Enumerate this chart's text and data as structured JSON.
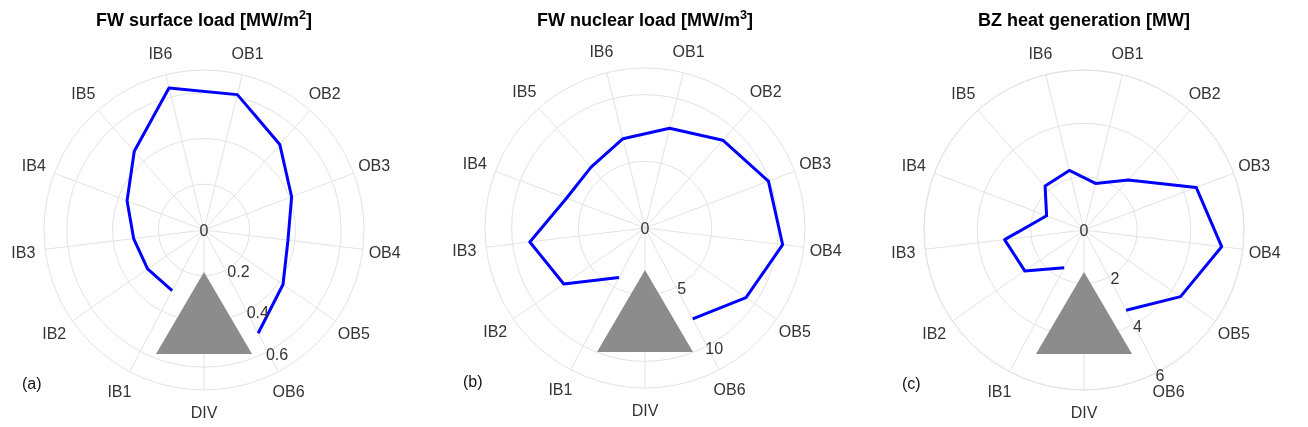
{
  "chart_data": [
    {
      "type": "radar",
      "title": "FW surface load [MW/m$^{2}$]",
      "categories": [
        "OB1",
        "OB2",
        "OB3",
        "OB4",
        "OB5",
        "OB6",
        "DIV",
        "IB1",
        "IB2",
        "IB3",
        "IB4",
        "IB5",
        "IB6"
      ],
      "series": [
        {
          "color": "#0000ff",
          "values": [
            0.61,
            0.5,
            0.41,
            0.37,
            0.42,
            0.51,
            null,
            0.3,
            0.3,
            0.31,
            0.36,
            0.46,
            0.64
          ]
        }
      ],
      "ylim": [
        0,
        0.7
      ],
      "yticks": [
        0,
        0.2,
        0.4,
        0.6
      ],
      "grid": true,
      "annotations": [
        "(a)"
      ]
    },
    {
      "type": "radar",
      "title": "FW nuclear load [MW/m$^{3}$]",
      "categories": [
        "OB1",
        "OB2",
        "OB3",
        "OB4",
        "OB5",
        "OB6",
        "DIV",
        "IB1",
        "IB2",
        "IB3",
        "IB4",
        "IB5",
        "IB6"
      ],
      "series": [
        {
          "color": "#0000ff",
          "values": [
            7.7,
            8.8,
            9.9,
            10.4,
            9.2,
            7.7,
            null,
            4.2,
            7.4,
            8.7,
            6.3,
            6.1,
            6.9
          ]
        }
      ],
      "ylim": [
        0,
        12
      ],
      "yticks": [
        0,
        5,
        10
      ],
      "grid": true,
      "annotations": [
        "(b)"
      ]
    },
    {
      "type": "radar",
      "title": "BZ heat generation [MW]",
      "categories": [
        "OB1",
        "OB2",
        "OB3",
        "OB4",
        "OB5",
        "OB6",
        "DIV",
        "IB1",
        "IB2",
        "IB3",
        "IB4",
        "IB5",
        "IB6"
      ],
      "series": [
        {
          "color": "#0000ff",
          "values": [
            1.8,
            2.5,
            4.5,
            5.2,
            4.4,
            3.4,
            null,
            1.6,
            2.7,
            3.0,
            1.5,
            2.2,
            2.3
          ]
        }
      ],
      "ylim": [
        0,
        6
      ],
      "yticks": [
        0,
        2,
        4,
        6
      ],
      "grid": true,
      "annotations": [
        "(c)"
      ]
    }
  ]
}
